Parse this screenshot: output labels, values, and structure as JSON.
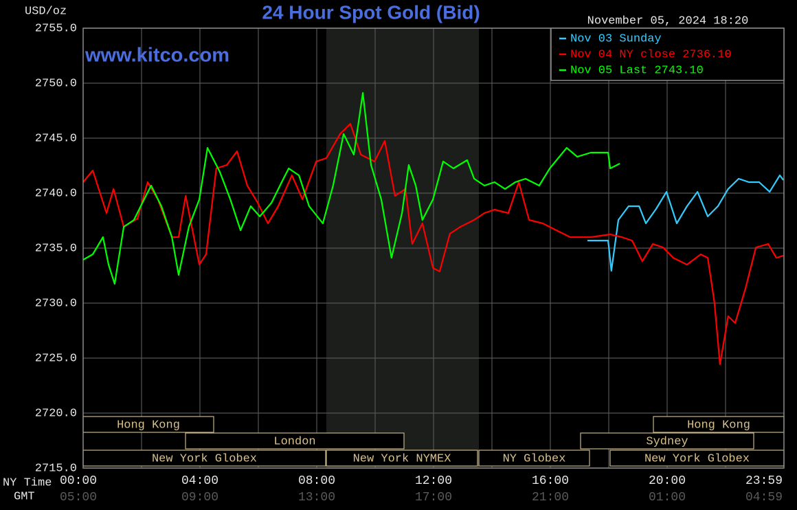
{
  "chart_data": {
    "type": "line",
    "title": "24 Hour Spot Gold (Bid)",
    "ylabel": "USD/oz",
    "timestamp": "November 05, 2024 18:20",
    "watermark": "www.kitco.com",
    "xlabel": "NY Time",
    "x2label": "GMT",
    "xlim": [
      0,
      24
    ],
    "ylim": [
      2715,
      2755
    ],
    "grid": true,
    "yticks": [
      {
        "value": 2715,
        "label": "2715.0"
      },
      {
        "value": 2720,
        "label": "2720.0"
      },
      {
        "value": 2725,
        "label": "2725.0"
      },
      {
        "value": 2730,
        "label": "2730.0"
      },
      {
        "value": 2735,
        "label": "2735.0"
      },
      {
        "value": 2740,
        "label": "2740.0"
      },
      {
        "value": 2745,
        "label": "2745.0"
      },
      {
        "value": 2750,
        "label": "2750.0"
      },
      {
        "value": 2755,
        "label": "2755.0"
      }
    ],
    "xticks": [
      {
        "value": 0,
        "label": "00:00"
      },
      {
        "value": 2,
        "label": null
      },
      {
        "value": 4,
        "label": "04:00"
      },
      {
        "value": 6,
        "label": null
      },
      {
        "value": 8,
        "label": "08:00"
      },
      {
        "value": 10,
        "label": null
      },
      {
        "value": 12,
        "label": "12:00"
      },
      {
        "value": 14,
        "label": null
      },
      {
        "value": 16,
        "label": "16:00"
      },
      {
        "value": 18,
        "label": null
      },
      {
        "value": 20,
        "label": "20:00"
      },
      {
        "value": 22,
        "label": null
      },
      {
        "value": 23.98,
        "label": "23:59"
      }
    ],
    "x2ticks": [
      {
        "value": 0,
        "label": "05:00"
      },
      {
        "value": 4,
        "label": "09:00"
      },
      {
        "value": 8,
        "label": "13:00"
      },
      {
        "value": 12,
        "label": "17:00"
      },
      {
        "value": 16,
        "label": "21:00"
      },
      {
        "value": 20,
        "label": "01:00"
      },
      {
        "value": 23.98,
        "label": "04:59"
      }
    ],
    "sessions": [
      "Hong Kong",
      "London",
      "New York Globex",
      "New York NYMEX",
      "NY Globex",
      "Hong Kong",
      "Sydney",
      "New York Globex"
    ],
    "series": [
      {
        "name": "Nov 03 Sunday",
        "color": "#33ccff",
        "x": [
          17.27,
          17.98,
          18.09,
          18.33,
          18.68,
          19.04,
          19.27,
          19.62,
          19.98,
          20.33,
          20.68,
          21.04,
          21.39,
          21.74,
          22.09,
          22.45,
          22.8,
          23.15,
          23.51,
          23.86,
          23.98
        ],
        "values": [
          2735.69,
          2735.69,
          2732.94,
          2737.56,
          2738.81,
          2738.81,
          2737.25,
          2738.56,
          2740.12,
          2737.25,
          2738.81,
          2740.12,
          2737.88,
          2738.81,
          2740.38,
          2741.31,
          2741.0,
          2741.0,
          2740.12,
          2741.62,
          2741.19
        ]
      },
      {
        "name": "Nov 04 NY close 2736.10",
        "color": "#ff0000",
        "x": [
          0,
          0.33,
          0.8,
          1.04,
          1.39,
          1.86,
          2.21,
          2.56,
          3.04,
          3.27,
          3.51,
          3.98,
          4.21,
          4.56,
          4.92,
          5.27,
          5.62,
          5.98,
          6.33,
          6.68,
          7.15,
          7.51,
          7.98,
          8.33,
          8.8,
          9.15,
          9.51,
          9.98,
          10.33,
          10.68,
          11.04,
          11.27,
          11.62,
          11.98,
          12.21,
          12.56,
          12.92,
          13.39,
          13.74,
          14.09,
          14.56,
          14.92,
          15.27,
          15.74,
          16.21,
          16.68,
          17.39,
          18.05,
          18.45,
          18.8,
          19.15,
          19.51,
          19.86,
          20.21,
          20.68,
          21.15,
          21.39,
          21.62,
          21.81,
          22.09,
          22.33,
          22.68,
          23.04,
          23.46,
          23.74,
          23.98
        ],
        "values": [
          2741.0,
          2742.06,
          2738.19,
          2740.38,
          2736.94,
          2737.69,
          2741.0,
          2739.44,
          2736.0,
          2736.0,
          2739.75,
          2733.5,
          2734.44,
          2742.25,
          2742.56,
          2743.81,
          2740.69,
          2739.12,
          2737.25,
          2738.81,
          2741.62,
          2739.44,
          2742.88,
          2743.19,
          2745.38,
          2746.31,
          2743.5,
          2742.88,
          2744.75,
          2739.75,
          2740.38,
          2735.38,
          2737.25,
          2733.19,
          2732.88,
          2736.31,
          2736.94,
          2737.56,
          2738.19,
          2738.5,
          2738.19,
          2741.0,
          2737.56,
          2737.25,
          2736.62,
          2736.0,
          2736.0,
          2736.25,
          2736.0,
          2735.69,
          2733.81,
          2735.38,
          2735.06,
          2734.12,
          2733.5,
          2734.44,
          2734.12,
          2730.06,
          2724.44,
          2728.81,
          2728.19,
          2731.31,
          2735.06,
          2735.38,
          2734.12,
          2734.31
        ]
      },
      {
        "name": "Nov 05 Last 2743.10",
        "color": "#00ff00",
        "x": [
          0,
          0.33,
          0.68,
          0.87,
          1.08,
          1.39,
          1.74,
          2.09,
          2.33,
          2.68,
          3.04,
          3.27,
          3.62,
          3.98,
          4.26,
          4.68,
          5.04,
          5.39,
          5.74,
          6.05,
          6.45,
          6.8,
          7.04,
          7.39,
          7.74,
          8.21,
          8.56,
          8.92,
          9.27,
          9.58,
          9.86,
          10.21,
          10.56,
          10.92,
          11.15,
          11.39,
          11.62,
          11.98,
          12.33,
          12.68,
          13.15,
          13.39,
          13.74,
          14.09,
          14.45,
          14.8,
          15.15,
          15.62,
          15.98,
          16.56,
          16.92,
          17.39,
          17.98,
          18.05,
          18.38
        ],
        "values": [
          2733.94,
          2734.44,
          2736.0,
          2733.5,
          2731.75,
          2736.94,
          2737.56,
          2739.44,
          2740.69,
          2738.81,
          2736.0,
          2732.56,
          2736.94,
          2739.44,
          2744.12,
          2741.94,
          2739.44,
          2736.62,
          2738.81,
          2737.88,
          2739.12,
          2741.0,
          2742.25,
          2741.62,
          2738.81,
          2737.25,
          2740.69,
          2745.38,
          2743.5,
          2749.12,
          2742.56,
          2739.44,
          2734.12,
          2738.19,
          2742.56,
          2740.69,
          2737.56,
          2739.44,
          2742.88,
          2742.25,
          2743.0,
          2741.31,
          2740.69,
          2741.0,
          2740.38,
          2741.0,
          2741.31,
          2740.69,
          2742.25,
          2744.12,
          2743.31,
          2743.69,
          2743.69,
          2742.25,
          2742.69
        ]
      }
    ]
  }
}
